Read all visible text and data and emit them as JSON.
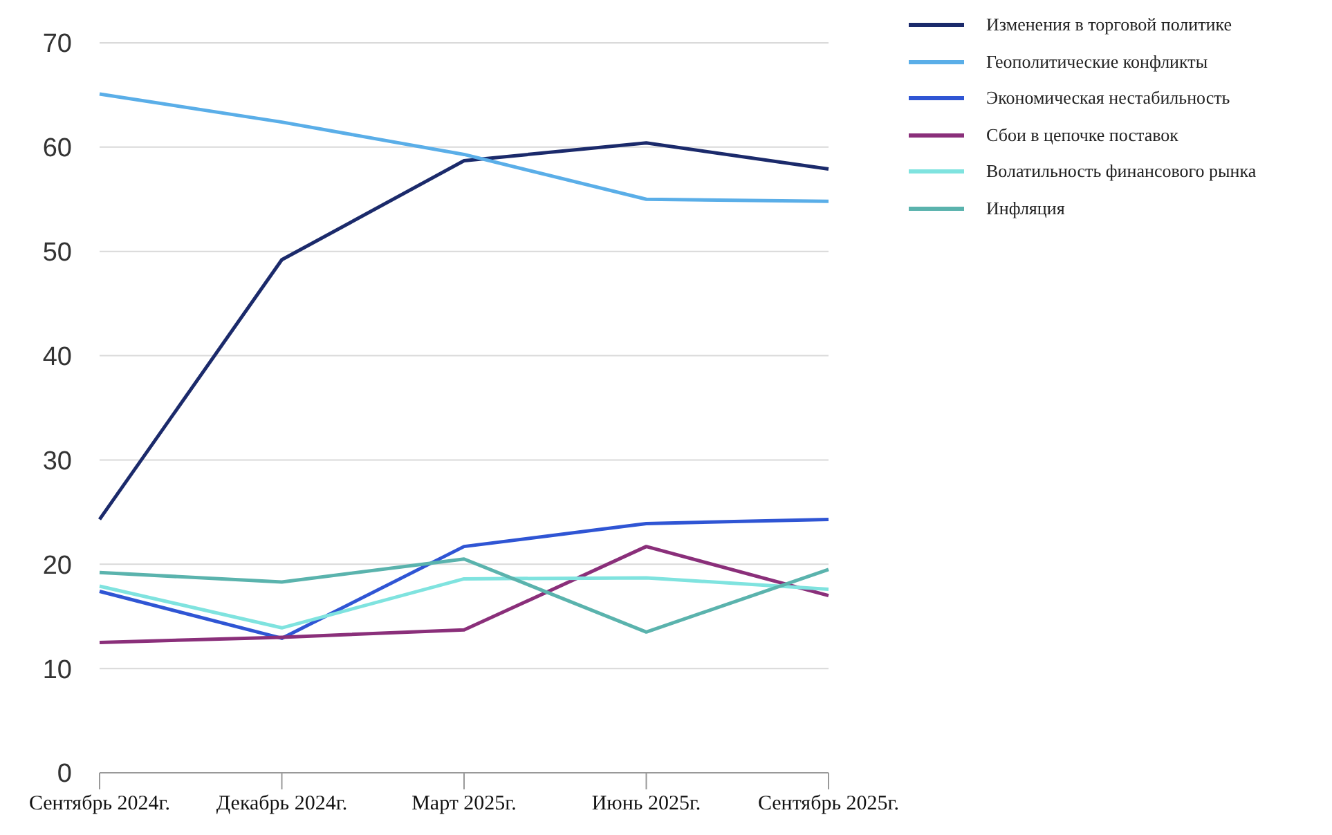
{
  "chart_data": {
    "type": "line",
    "categories": [
      "Сентябрь 2024г.",
      "Декабрь 2024г.",
      "Март 2025г.",
      "Июнь 2025г.",
      "Сентябрь 2025г."
    ],
    "series": [
      {
        "name": "Изменения в торговой политике",
        "color": "#1b2a6b",
        "values": [
          24.3,
          49.2,
          58.7,
          60.4,
          57.9
        ]
      },
      {
        "name": "Геополитические конфликты",
        "color": "#5aaee8",
        "values": [
          65.1,
          62.4,
          59.3,
          55.0,
          54.8
        ]
      },
      {
        "name": "Экономическая нестабильность",
        "color": "#2f55d4",
        "values": [
          17.4,
          12.9,
          21.7,
          23.9,
          24.3
        ]
      },
      {
        "name": "Сбои в цепочке поставок",
        "color": "#8a2f7a",
        "values": [
          12.5,
          13.0,
          13.7,
          21.7,
          17.0
        ]
      },
      {
        "name": "Волатильность финансового рынка",
        "color": "#7fe3df",
        "values": [
          17.9,
          13.9,
          18.6,
          18.7,
          17.6
        ]
      },
      {
        "name": "Инфляция",
        "color": "#5ab3ad",
        "values": [
          19.2,
          18.3,
          20.5,
          13.5,
          19.5
        ]
      }
    ],
    "ylim": [
      0,
      70
    ],
    "yticks": [
      0,
      10,
      20,
      30,
      40,
      50,
      60,
      70
    ],
    "grid": "y",
    "legend": "top right",
    "marker": "none",
    "line_style": "solid"
  }
}
